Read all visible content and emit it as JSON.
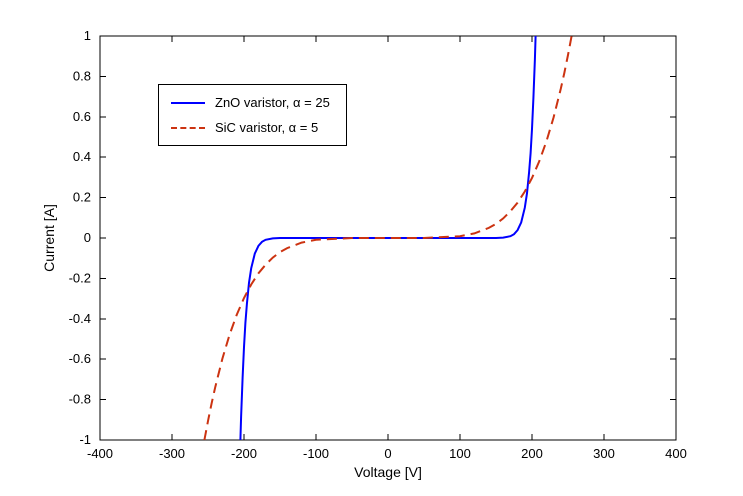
{
  "chart_data": {
    "type": "line",
    "title": "",
    "xlabel": "Voltage [V]",
    "ylabel": "Current [A]",
    "xlim": [
      -400,
      400
    ],
    "ylim": [
      -1,
      1
    ],
    "xticks": [
      -400,
      -300,
      -200,
      -100,
      0,
      100,
      200,
      300,
      400
    ],
    "xtick_labels": [
      "-400",
      "-300",
      "-200",
      "-100",
      "0",
      "100",
      "200",
      "300",
      "400"
    ],
    "yticks": [
      -1,
      -0.8,
      -0.6,
      -0.4,
      -0.2,
      0,
      0.2,
      0.4,
      0.6,
      0.8,
      1
    ],
    "ytick_labels": [
      "-1",
      "-0.8",
      "-0.6",
      "-0.4",
      "-0.2",
      "0",
      "0.2",
      "0.4",
      "0.6",
      "0.8",
      "1"
    ],
    "grid": false,
    "legend_position": "upper-left-inside",
    "series": [
      {
        "name": "ZnO varistor",
        "label": "ZnO varistor, α = 25",
        "alpha": 25,
        "color": "#0000ff",
        "line_style": "solid",
        "x": [
          -205,
          -204,
          -202,
          -200,
          -198,
          -196,
          -193,
          -190,
          -185,
          -180,
          -175,
          -170,
          -160,
          -150,
          -100,
          0,
          100,
          150,
          160,
          170,
          175,
          180,
          185,
          190,
          193,
          196,
          198,
          200,
          202,
          204,
          205
        ],
        "y": [
          -1,
          -0.885,
          -0.692,
          -0.54,
          -0.42,
          -0.326,
          -0.222,
          -0.15,
          -0.077,
          -0.039,
          -0.019,
          -0.009,
          -0.002,
          0,
          0,
          0,
          0,
          0,
          0.002,
          0.009,
          0.019,
          0.039,
          0.077,
          0.15,
          0.222,
          0.326,
          0.42,
          0.54,
          0.692,
          0.885,
          1
        ]
      },
      {
        "name": "SiC varistor",
        "label": "SiC varistor, α = 5",
        "alpha": 5,
        "color": "#cc3311",
        "line_style": "dashed",
        "x": [
          -255,
          -250,
          -245,
          -240,
          -230,
          -220,
          -210,
          -200,
          -190,
          -180,
          -170,
          -160,
          -150,
          -140,
          -120,
          -100,
          -50,
          0,
          50,
          100,
          120,
          140,
          150,
          160,
          170,
          180,
          190,
          200,
          210,
          220,
          230,
          240,
          245,
          250,
          255
        ],
        "y": [
          -1,
          -0.906,
          -0.819,
          -0.739,
          -0.597,
          -0.478,
          -0.379,
          -0.297,
          -0.23,
          -0.175,
          -0.132,
          -0.097,
          -0.07,
          -0.05,
          -0.023,
          -0.009,
          0,
          0,
          0,
          0.009,
          0.023,
          0.05,
          0.07,
          0.097,
          0.132,
          0.175,
          0.23,
          0.297,
          0.379,
          0.478,
          0.597,
          0.739,
          0.819,
          0.906,
          1
        ]
      }
    ]
  }
}
